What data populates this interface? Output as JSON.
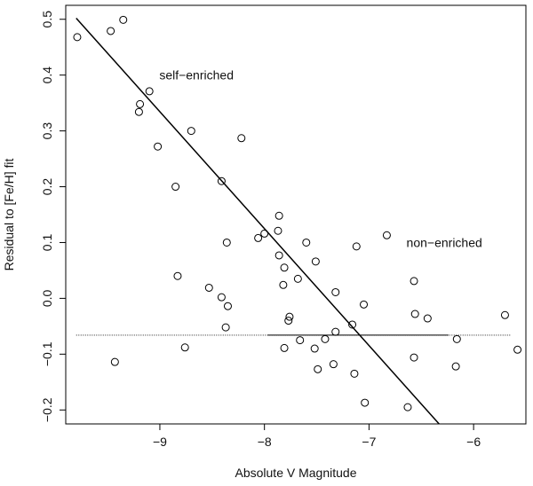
{
  "chart_data": {
    "type": "scatter",
    "xlabel": "Absolute V Magnitude",
    "ylabel": "Residual to [Fe/H] fit",
    "xlim": [
      -9.9,
      -5.5
    ],
    "ylim": [
      -0.225,
      0.525
    ],
    "x_ticks": [
      -9,
      -8,
      -7,
      -6
    ],
    "x_tick_labels": [
      "−9",
      "−8",
      "−7",
      "−6"
    ],
    "y_ticks": [
      -0.2,
      -0.1,
      0.0,
      0.1,
      0.2,
      0.3,
      0.4,
      0.5
    ],
    "y_tick_labels": [
      "−0.2",
      "−0.1",
      "0.0",
      "0.1",
      "0.2",
      "0.3",
      "0.4",
      "0.5"
    ],
    "grid": false,
    "annotations": [
      {
        "text": "self−enriched",
        "x": -8.65,
        "y": 0.4
      },
      {
        "text": "non−enriched",
        "x": -6.28,
        "y": 0.1
      }
    ],
    "lines": [
      {
        "name": "self-enriched fit",
        "style": "solid",
        "points": [
          [
            -9.8,
            0.502
          ],
          [
            -6.33,
            -0.225
          ]
        ]
      },
      {
        "name": "non-enriched mean solid",
        "style": "solid",
        "points": [
          [
            -7.97,
            -0.066
          ],
          [
            -6.24,
            -0.066
          ]
        ]
      },
      {
        "name": "non-enriched mean dotted",
        "style": "dotted",
        "points": [
          [
            -9.8,
            -0.066
          ],
          [
            -5.65,
            -0.066
          ]
        ]
      }
    ],
    "series": [
      {
        "marker": "open-circle",
        "points": [
          [
            -9.79,
            0.468
          ],
          [
            -9.47,
            0.479
          ],
          [
            -9.35,
            0.499
          ],
          [
            -9.1,
            0.371
          ],
          [
            -9.19,
            0.348
          ],
          [
            -9.2,
            0.334
          ],
          [
            -9.02,
            0.272
          ],
          [
            -8.7,
            0.3
          ],
          [
            -8.22,
            0.287
          ],
          [
            -8.85,
            0.2
          ],
          [
            -8.41,
            0.21
          ],
          [
            -8.83,
            0.04
          ],
          [
            -8.53,
            0.019
          ],
          [
            -8.41,
            0.002
          ],
          [
            -8.35,
            -0.014
          ],
          [
            -8.37,
            -0.052
          ],
          [
            -8.76,
            -0.088
          ],
          [
            -9.43,
            -0.114
          ],
          [
            -8.36,
            0.1
          ],
          [
            -8.06,
            0.108
          ],
          [
            -8.0,
            0.116
          ],
          [
            -7.86,
            0.148
          ],
          [
            -7.87,
            0.121
          ],
          [
            -7.86,
            0.077
          ],
          [
            -7.81,
            0.055
          ],
          [
            -7.82,
            0.024
          ],
          [
            -7.76,
            -0.033
          ],
          [
            -7.77,
            -0.04
          ],
          [
            -7.68,
            0.035
          ],
          [
            -7.6,
            0.1
          ],
          [
            -7.51,
            0.066
          ],
          [
            -7.66,
            -0.075
          ],
          [
            -7.81,
            -0.089
          ],
          [
            -7.42,
            -0.073
          ],
          [
            -7.52,
            -0.09
          ],
          [
            -7.49,
            -0.127
          ],
          [
            -7.34,
            -0.118
          ],
          [
            -7.32,
            -0.06
          ],
          [
            -7.32,
            0.011
          ],
          [
            -7.16,
            -0.047
          ],
          [
            -7.14,
            -0.135
          ],
          [
            -7.05,
            -0.011
          ],
          [
            -7.04,
            -0.187
          ],
          [
            -7.12,
            0.093
          ],
          [
            -6.83,
            0.113
          ],
          [
            -6.63,
            -0.195
          ],
          [
            -6.57,
            -0.106
          ],
          [
            -6.57,
            0.031
          ],
          [
            -6.56,
            -0.028
          ],
          [
            -6.44,
            -0.036
          ],
          [
            -6.16,
            -0.073
          ],
          [
            -6.17,
            -0.122
          ],
          [
            -5.7,
            -0.03
          ],
          [
            -5.58,
            -0.092
          ]
        ]
      }
    ]
  }
}
